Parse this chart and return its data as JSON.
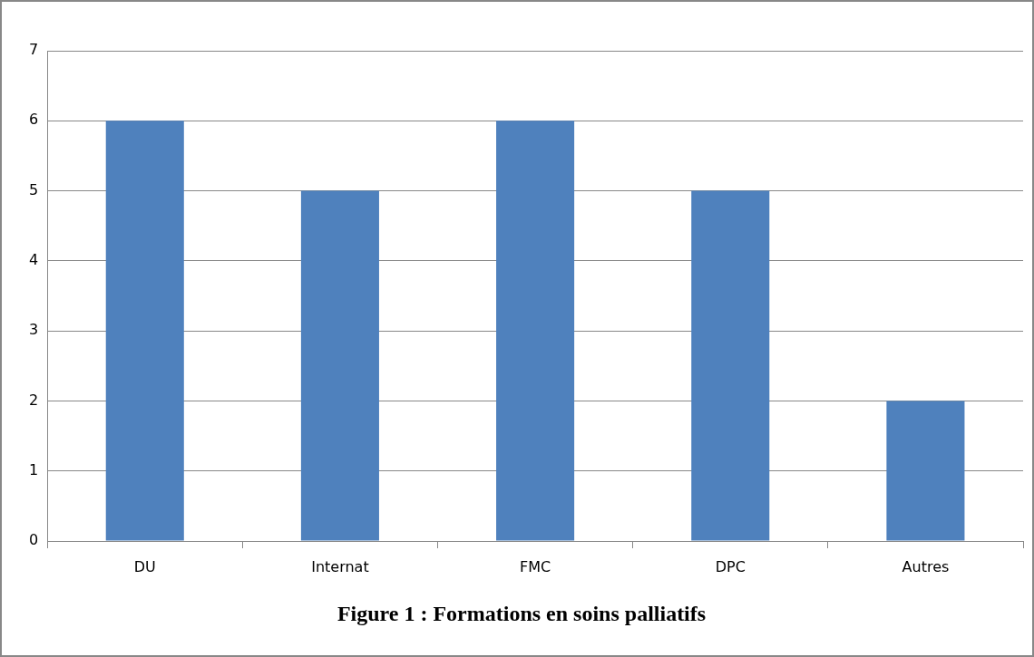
{
  "chart_data": {
    "type": "bar",
    "title": "Figure 1 : Formations en soins palliatifs",
    "categories": [
      "DU",
      "Internat",
      "FMC",
      "DPC",
      "Autres"
    ],
    "values": [
      6,
      5,
      6,
      5,
      2
    ],
    "color": "#4f81bd",
    "ylim": [
      0,
      7
    ],
    "yticks": [
      0,
      1,
      2,
      3,
      4,
      5,
      6,
      7
    ],
    "grid": "y",
    "legend": false
  }
}
